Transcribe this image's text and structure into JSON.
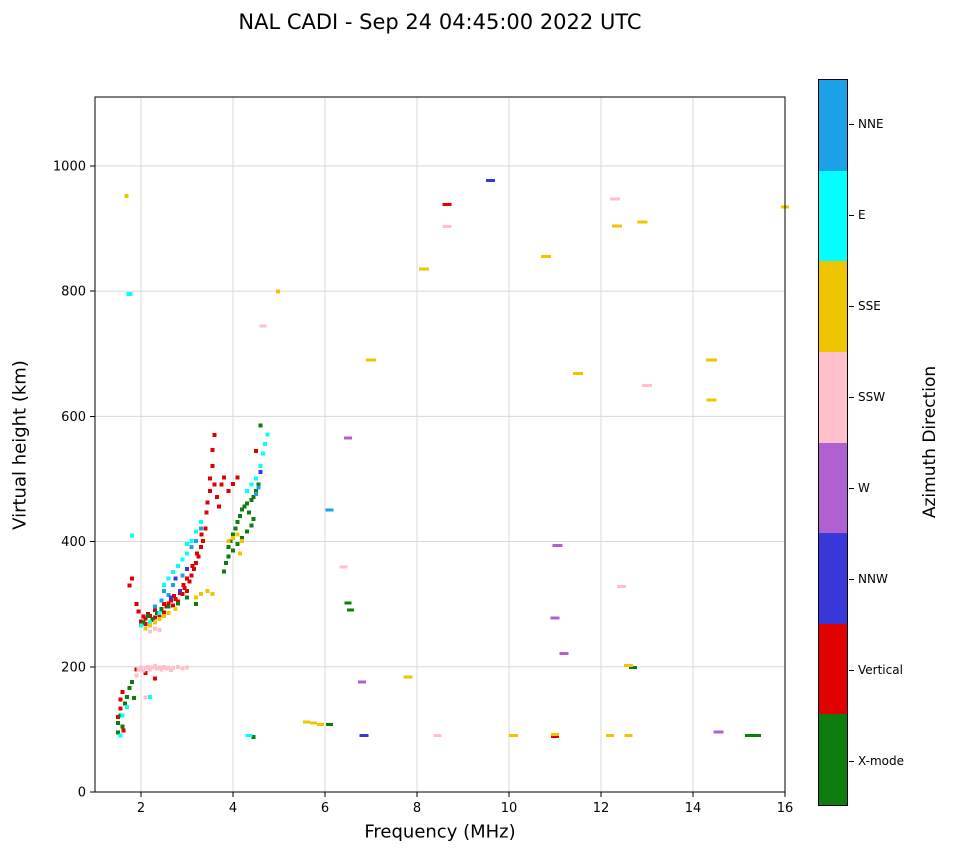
{
  "title": "NAL CADI - Sep 24 04:45:00 2022 UTC",
  "chart_data": {
    "type": "scatter",
    "title": "NAL CADI - Sep 24 04:45:00 2022 UTC",
    "xlabel": "Frequency (MHz)",
    "ylabel": "Virtual height (km)",
    "colorbar_label": "Azimuth Direction",
    "xlim": [
      1,
      16
    ],
    "ylim": [
      0,
      1110
    ],
    "xticks": [
      2,
      4,
      6,
      8,
      10,
      12,
      14,
      16
    ],
    "yticks": [
      0,
      200,
      400,
      600,
      800,
      1000
    ],
    "grid": true,
    "legend_position": "right-colorbar",
    "legend": [
      {
        "label": "NNE",
        "color": "#1da2e8"
      },
      {
        "label": "E",
        "color": "#00ffff"
      },
      {
        "label": "SSE",
        "color": "#eec500"
      },
      {
        "label": "SSW",
        "color": "#ffc0cb"
      },
      {
        "label": "W",
        "color": "#b060d0"
      },
      {
        "label": "NNW",
        "color": "#3939d9"
      },
      {
        "label": "Vertical",
        "color": "#e00000"
      },
      {
        "label": "X-mode",
        "color": "#0d7d0d"
      }
    ],
    "series": [
      {
        "name": "Vertical",
        "color": "#e00000",
        "points": [
          [
            1.5,
            120
          ],
          [
            1.55,
            133
          ],
          [
            1.55,
            148
          ],
          [
            1.6,
            160
          ],
          [
            1.62,
            98
          ],
          [
            1.75,
            330
          ],
          [
            1.8,
            341
          ],
          [
            1.9,
            300
          ],
          [
            1.95,
            288
          ],
          [
            2.0,
            272
          ],
          [
            2.05,
            280
          ],
          [
            2.1,
            268
          ],
          [
            2.1,
            277
          ],
          [
            2.15,
            284
          ],
          [
            2.2,
            270
          ],
          [
            2.2,
            281
          ],
          [
            2.25,
            275
          ],
          [
            2.3,
            279
          ],
          [
            2.3,
            291
          ],
          [
            2.35,
            286
          ],
          [
            2.4,
            283
          ],
          [
            2.45,
            291
          ],
          [
            2.5,
            287
          ],
          [
            2.5,
            300
          ],
          [
            2.55,
            296
          ],
          [
            2.6,
            301
          ],
          [
            2.65,
            306
          ],
          [
            2.7,
            298
          ],
          [
            2.72,
            313
          ],
          [
            2.75,
            308
          ],
          [
            2.8,
            304
          ],
          [
            2.85,
            318
          ],
          [
            2.9,
            316
          ],
          [
            2.92,
            331
          ],
          [
            2.95,
            326
          ],
          [
            3.0,
            321
          ],
          [
            3.0,
            341
          ],
          [
            3.05,
            336
          ],
          [
            3.1,
            346
          ],
          [
            3.12,
            361
          ],
          [
            3.15,
            356
          ],
          [
            3.2,
            366
          ],
          [
            3.22,
            381
          ],
          [
            3.25,
            376
          ],
          [
            3.3,
            391
          ],
          [
            3.32,
            411
          ],
          [
            3.35,
            401
          ],
          [
            3.4,
            421
          ],
          [
            3.42,
            446
          ],
          [
            3.45,
            462
          ],
          [
            3.5,
            481
          ],
          [
            3.5,
            501
          ],
          [
            3.55,
            521
          ],
          [
            3.55,
            546
          ],
          [
            3.6,
            570
          ],
          [
            3.6,
            491
          ],
          [
            3.65,
            471
          ],
          [
            3.7,
            456
          ],
          [
            3.75,
            491
          ],
          [
            3.8,
            502
          ],
          [
            3.9,
            481
          ],
          [
            4.0,
            492
          ],
          [
            4.1,
            502
          ],
          [
            4.5,
            545
          ],
          [
            2.1,
            190
          ],
          [
            2.3,
            181
          ],
          [
            1.9,
            196
          ],
          [
            8.65,
            938,
            9
          ],
          [
            11.0,
            89,
            8
          ]
        ]
      },
      {
        "name": "X-mode",
        "color": "#0d7d0d",
        "points": [
          [
            1.5,
            95
          ],
          [
            1.5,
            110
          ],
          [
            1.55,
            122
          ],
          [
            1.6,
            105
          ],
          [
            1.65,
            141
          ],
          [
            1.7,
            152
          ],
          [
            1.75,
            166
          ],
          [
            1.8,
            176
          ],
          [
            1.85,
            150
          ],
          [
            2.05,
            271
          ],
          [
            2.15,
            281
          ],
          [
            2.25,
            276
          ],
          [
            2.35,
            286
          ],
          [
            2.45,
            292
          ],
          [
            2.6,
            296
          ],
          [
            2.8,
            301
          ],
          [
            3.0,
            311
          ],
          [
            3.2,
            300
          ],
          [
            3.8,
            352
          ],
          [
            3.85,
            366
          ],
          [
            3.9,
            376
          ],
          [
            3.9,
            391
          ],
          [
            3.95,
            401
          ],
          [
            4.0,
            386
          ],
          [
            4.0,
            411
          ],
          [
            4.05,
            421
          ],
          [
            4.1,
            396
          ],
          [
            4.1,
            431
          ],
          [
            4.15,
            441
          ],
          [
            4.2,
            406
          ],
          [
            4.2,
            451
          ],
          [
            4.25,
            456
          ],
          [
            4.3,
            416
          ],
          [
            4.3,
            461
          ],
          [
            4.35,
            446
          ],
          [
            4.4,
            426
          ],
          [
            4.4,
            466
          ],
          [
            4.45,
            436
          ],
          [
            4.45,
            471
          ],
          [
            4.5,
            481
          ],
          [
            4.55,
            491
          ],
          [
            4.6,
            585
          ],
          [
            4.45,
            88
          ],
          [
            6.1,
            108,
            7
          ],
          [
            6.5,
            302,
            7
          ],
          [
            6.55,
            291,
            7
          ],
          [
            12.7,
            199,
            8
          ],
          [
            15.3,
            90,
            16
          ]
        ]
      },
      {
        "name": "E",
        "color": "#00ffff",
        "points": [
          [
            1.75,
            795,
            6
          ],
          [
            1.8,
            410
          ],
          [
            1.6,
            122
          ],
          [
            1.7,
            136
          ],
          [
            1.55,
            90
          ],
          [
            2.0,
            266
          ],
          [
            2.2,
            271
          ],
          [
            2.4,
            286
          ],
          [
            2.5,
            331
          ],
          [
            2.6,
            341
          ],
          [
            2.7,
            351
          ],
          [
            2.8,
            361
          ],
          [
            2.9,
            371
          ],
          [
            3.0,
            381
          ],
          [
            3.0,
            396
          ],
          [
            3.1,
            401
          ],
          [
            3.2,
            416
          ],
          [
            3.3,
            431
          ],
          [
            4.3,
            481
          ],
          [
            4.4,
            491
          ],
          [
            4.5,
            501
          ],
          [
            4.6,
            521
          ],
          [
            4.65,
            541
          ],
          [
            4.7,
            556
          ],
          [
            4.75,
            571
          ],
          [
            4.35,
            90,
            7
          ],
          [
            2.2,
            152
          ]
        ]
      },
      {
        "name": "NNE",
        "color": "#1da2e8",
        "points": [
          [
            2.5,
            321
          ],
          [
            2.7,
            331
          ],
          [
            2.9,
            346
          ],
          [
            3.1,
            391
          ],
          [
            3.2,
            401
          ],
          [
            3.3,
            421
          ],
          [
            2.3,
            296
          ],
          [
            2.45,
            306
          ],
          [
            2.6,
            315
          ],
          [
            4.5,
            476
          ],
          [
            4.55,
            486
          ],
          [
            6.1,
            450,
            8
          ]
        ]
      },
      {
        "name": "NNW",
        "color": "#3939d9",
        "points": [
          [
            9.6,
            977,
            9
          ],
          [
            6.85,
            90,
            9
          ],
          [
            2.65,
            311
          ],
          [
            2.85,
            321
          ],
          [
            3.0,
            356
          ],
          [
            4.6,
            511
          ],
          [
            2.75,
            341
          ]
        ]
      },
      {
        "name": "SSE",
        "color": "#eec500",
        "points": [
          [
            1.68,
            952
          ],
          [
            2.1,
            261
          ],
          [
            2.2,
            266
          ],
          [
            2.3,
            271
          ],
          [
            2.4,
            276
          ],
          [
            2.5,
            281
          ],
          [
            2.6,
            286
          ],
          [
            2.75,
            292
          ],
          [
            3.2,
            311
          ],
          [
            3.3,
            316
          ],
          [
            3.45,
            321
          ],
          [
            3.55,
            316
          ],
          [
            3.9,
            401
          ],
          [
            4.0,
            406
          ],
          [
            4.1,
            411
          ],
          [
            4.2,
            401
          ],
          [
            4.15,
            381
          ],
          [
            4.98,
            799
          ],
          [
            5.6,
            112,
            7
          ],
          [
            5.75,
            110,
            7
          ],
          [
            5.9,
            108,
            7
          ],
          [
            7.0,
            690,
            10
          ],
          [
            7.8,
            184,
            9
          ],
          [
            8.15,
            835,
            10
          ],
          [
            10.1,
            90,
            9
          ],
          [
            10.8,
            855,
            10
          ],
          [
            11.0,
            92,
            8
          ],
          [
            11.5,
            668,
            10
          ],
          [
            12.2,
            90,
            8
          ],
          [
            12.35,
            904,
            10
          ],
          [
            12.6,
            202,
            9
          ],
          [
            12.6,
            90,
            8
          ],
          [
            12.9,
            910,
            10
          ],
          [
            14.4,
            690,
            11
          ],
          [
            14.4,
            626,
            10
          ],
          [
            16.0,
            934,
            8
          ]
        ]
      },
      {
        "name": "SSW",
        "color": "#ffc0cb",
        "points": [
          [
            1.95,
            196
          ],
          [
            2.0,
            199
          ],
          [
            2.05,
            194
          ],
          [
            2.1,
            198
          ],
          [
            2.15,
            200
          ],
          [
            2.2,
            196
          ],
          [
            2.25,
            199
          ],
          [
            2.3,
            201
          ],
          [
            2.35,
            197
          ],
          [
            2.4,
            199
          ],
          [
            2.45,
            196
          ],
          [
            2.5,
            200
          ],
          [
            2.55,
            197
          ],
          [
            2.6,
            199
          ],
          [
            2.65,
            195
          ],
          [
            2.7,
            198
          ],
          [
            2.8,
            200
          ],
          [
            2.9,
            197
          ],
          [
            3.0,
            199
          ],
          [
            2.2,
            256
          ],
          [
            2.3,
            261
          ],
          [
            2.4,
            259
          ],
          [
            2.1,
            151
          ],
          [
            1.9,
            186
          ],
          [
            4.65,
            744,
            7
          ],
          [
            6.4,
            359,
            8
          ],
          [
            8.45,
            90,
            8
          ],
          [
            8.65,
            903,
            9
          ],
          [
            12.3,
            947,
            10
          ],
          [
            12.45,
            328,
            9
          ],
          [
            13.0,
            649,
            10
          ]
        ]
      },
      {
        "name": "W",
        "color": "#b060d0",
        "points": [
          [
            6.5,
            565,
            8
          ],
          [
            6.8,
            176,
            8
          ],
          [
            11.05,
            394,
            10
          ],
          [
            11.0,
            278,
            9
          ],
          [
            11.2,
            221,
            9
          ],
          [
            14.55,
            96,
            10
          ]
        ]
      }
    ]
  }
}
